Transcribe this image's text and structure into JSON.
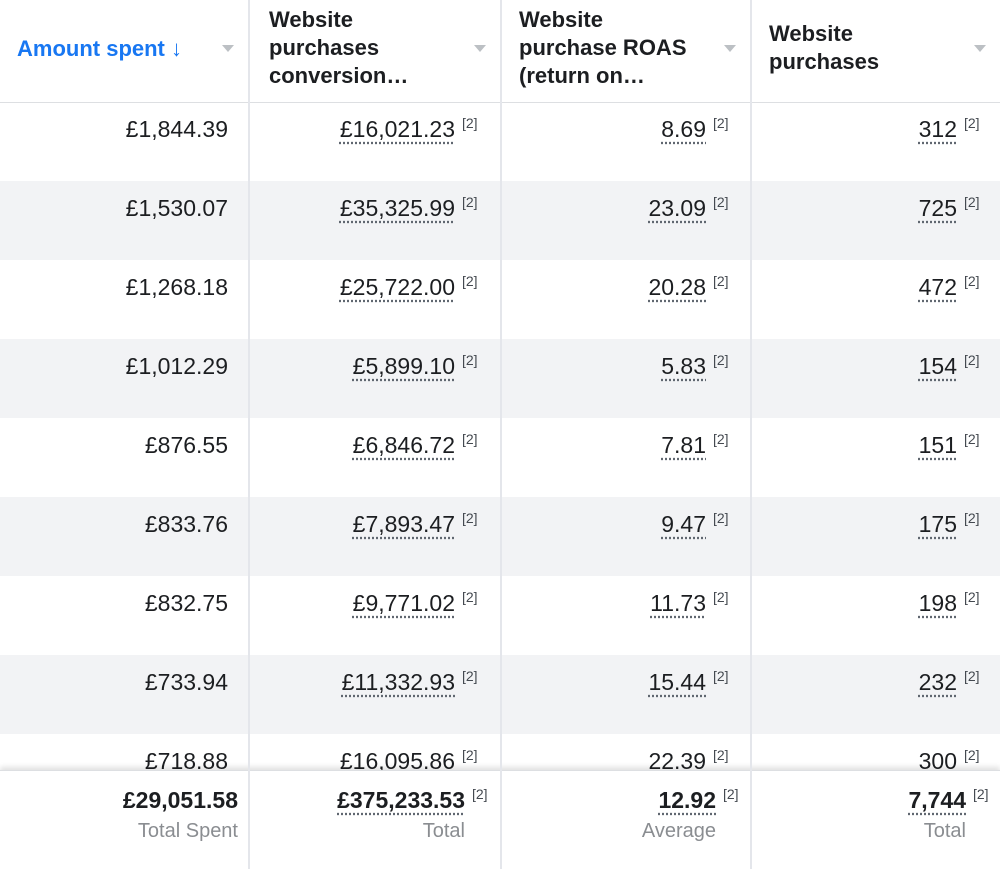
{
  "columns": [
    {
      "label_lines": [
        "Amount spent ↓"
      ],
      "sorted": true
    },
    {
      "label_lines": [
        "Website",
        "purchases",
        "conversion…"
      ],
      "sorted": false
    },
    {
      "label_lines": [
        "Website",
        "purchase ROAS",
        "(return on…"
      ],
      "sorted": false
    },
    {
      "label_lines": [
        "Website",
        "purchases"
      ],
      "sorted": false
    }
  ],
  "note": "[2]",
  "rows": [
    {
      "spent": "£1,844.39",
      "conversion": "£16,021.23",
      "roas": "8.69",
      "purchases": "312"
    },
    {
      "spent": "£1,530.07",
      "conversion": "£35,325.99",
      "roas": "23.09",
      "purchases": "725"
    },
    {
      "spent": "£1,268.18",
      "conversion": "£25,722.00",
      "roas": "20.28",
      "purchases": "472"
    },
    {
      "spent": "£1,012.29",
      "conversion": "£5,899.10",
      "roas": "5.83",
      "purchases": "154"
    },
    {
      "spent": "£876.55",
      "conversion": "£6,846.72",
      "roas": "7.81",
      "purchases": "151"
    },
    {
      "spent": "£833.76",
      "conversion": "£7,893.47",
      "roas": "9.47",
      "purchases": "175"
    },
    {
      "spent": "£832.75",
      "conversion": "£9,771.02",
      "roas": "11.73",
      "purchases": "198"
    },
    {
      "spent": "£733.94",
      "conversion": "£11,332.93",
      "roas": "15.44",
      "purchases": "232"
    },
    {
      "spent": "£718.88",
      "conversion": "£16,095.86",
      "roas": "22.39",
      "purchases": "300"
    }
  ],
  "totals": {
    "spent": {
      "value": "£29,051.58",
      "label": "Total Spent"
    },
    "conversion": {
      "value": "£375,233.53",
      "label": "Total"
    },
    "roas": {
      "value": "12.92",
      "label": "Average"
    },
    "purchases": {
      "value": "7,744",
      "label": "Total"
    }
  },
  "colors": {
    "accent": "#1877f2",
    "row_alt": "#f2f3f5",
    "grid": "#e4e6eb",
    "muted": "#8a8d91"
  }
}
